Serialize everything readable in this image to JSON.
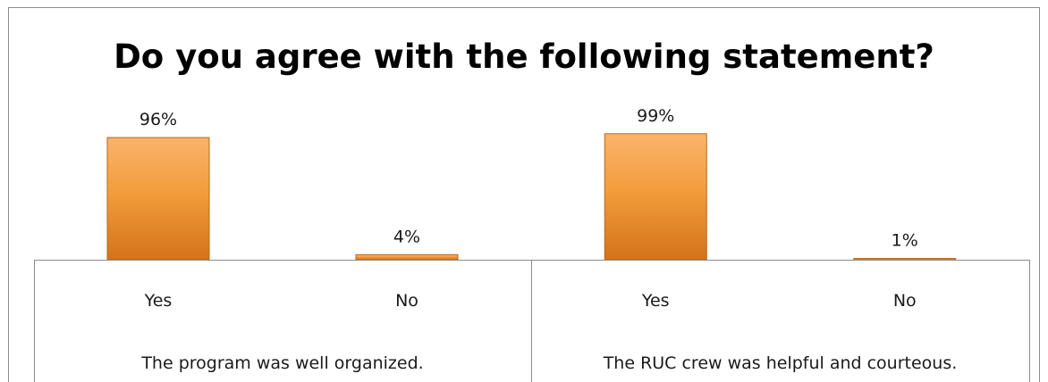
{
  "chart_data": {
    "type": "bar",
    "title": "Do you agree with the following statement?",
    "ylim": [
      0,
      100
    ],
    "grid": false,
    "legend": "none",
    "groups": [
      {
        "label": "The program was well organized.",
        "categories": [
          "Yes",
          "No"
        ],
        "values": [
          96,
          4
        ],
        "data_labels": [
          "96%",
          "4%"
        ]
      },
      {
        "label": "The RUC crew was helpful and courteous.",
        "categories": [
          "Yes",
          "No"
        ],
        "values": [
          99,
          1
        ],
        "data_labels": [
          "99%",
          "1%"
        ]
      }
    ],
    "colors": {
      "bar_top": "#fbb36a",
      "bar_mid": "#f29d3c",
      "bar_bottom": "#d4731a",
      "bar_edge": "#b86818"
    }
  }
}
